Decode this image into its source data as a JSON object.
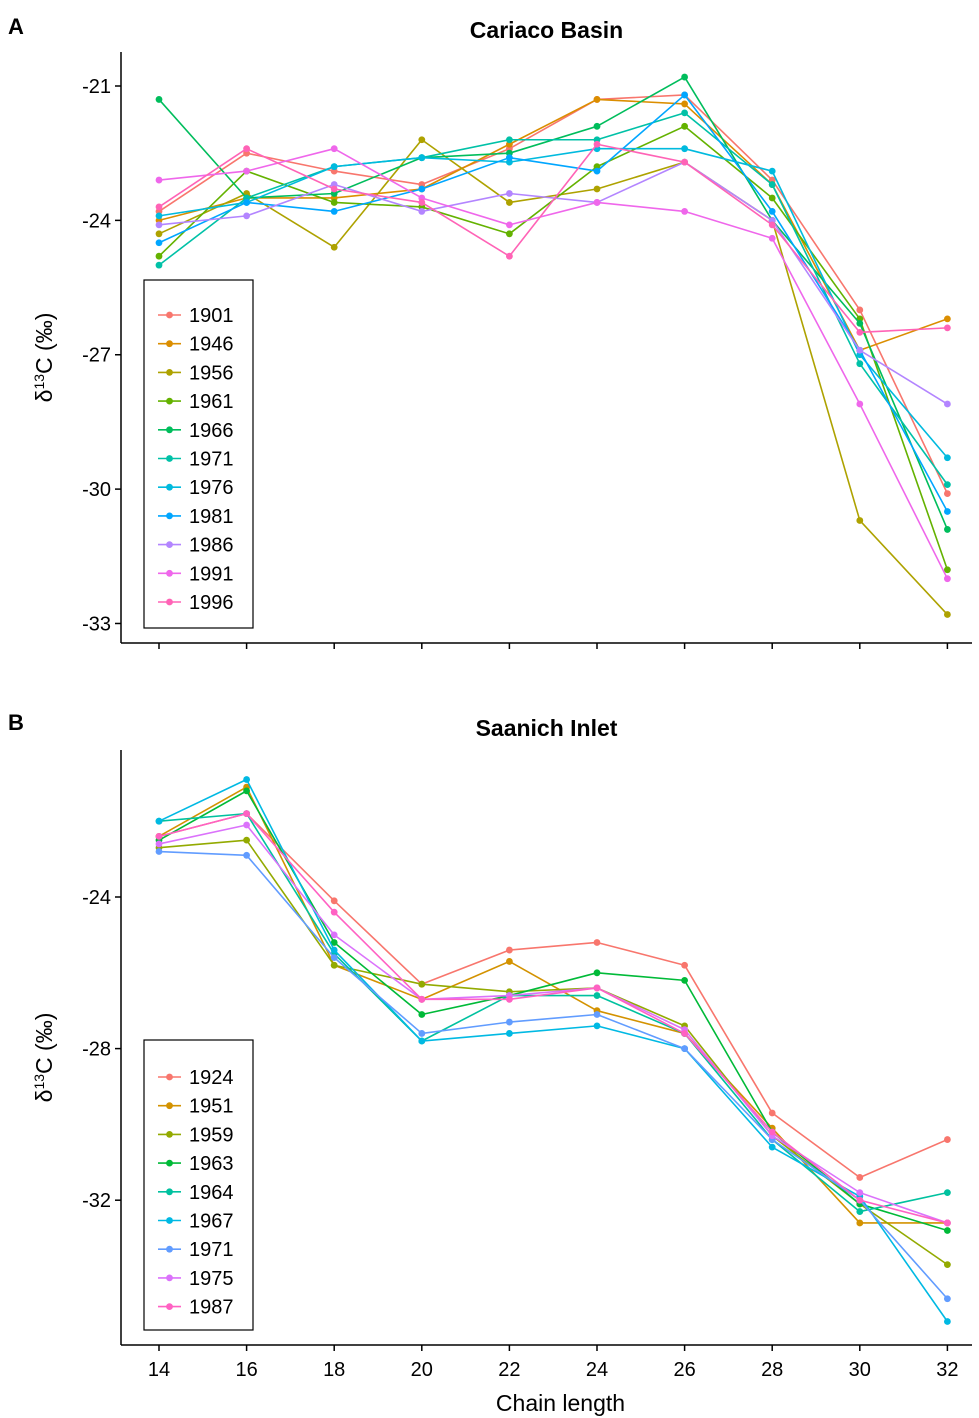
{
  "chart_data": [
    {
      "type": "line",
      "panel_label": "A",
      "title": "Cariaco Basin",
      "xlabel": "",
      "ylabel_prefix": "δ",
      "ylabel_sup": "13",
      "ylabel_suffix": "C (‰)",
      "x": [
        14,
        16,
        18,
        20,
        22,
        24,
        26,
        28,
        30,
        32
      ],
      "yticks": [
        -21,
        -24,
        -27,
        -30,
        -33
      ],
      "ylim": [
        -33.2,
        -20.2
      ],
      "legend_position": "bottom-left",
      "grid": false,
      "series": [
        {
          "name": "1901",
          "color": "#F8766D",
          "values": [
            -23.8,
            -22.5,
            -22.9,
            -23.2,
            -22.4,
            -21.3,
            -21.2,
            -23.1,
            -26.0,
            -30.1
          ]
        },
        {
          "name": "1946",
          "color": "#DB8E00",
          "values": [
            -24.0,
            -23.5,
            -23.5,
            -23.3,
            -22.3,
            -21.3,
            -21.4,
            -23.2,
            -26.9,
            -26.2
          ]
        },
        {
          "name": "1956",
          "color": "#AEA200",
          "values": [
            -24.3,
            -23.4,
            -24.6,
            -22.2,
            -23.6,
            -23.3,
            -22.7,
            -24.0,
            -30.7,
            -32.8
          ]
        },
        {
          "name": "1961",
          "color": "#64B200",
          "values": [
            -24.8,
            -22.9,
            -23.6,
            -23.7,
            -24.3,
            -22.8,
            -21.9,
            -23.5,
            -26.2,
            -31.8
          ]
        },
        {
          "name": "1966",
          "color": "#00BD5C",
          "values": [
            -21.3,
            -23.5,
            -23.4,
            -22.6,
            -22.5,
            -21.9,
            -20.8,
            -24.0,
            -26.3,
            -30.9
          ]
        },
        {
          "name": "1971",
          "color": "#00C1A7",
          "values": [
            -25.0,
            -23.5,
            -22.8,
            -22.6,
            -22.2,
            -22.2,
            -21.6,
            -23.2,
            -27.2,
            -29.9
          ]
        },
        {
          "name": "1976",
          "color": "#00BADE",
          "values": [
            -23.9,
            -23.6,
            -22.8,
            -22.6,
            -22.7,
            -22.4,
            -22.4,
            -22.9,
            -27.0,
            -29.3
          ]
        },
        {
          "name": "1981",
          "color": "#00A6FF",
          "values": [
            -24.5,
            -23.6,
            -23.8,
            -23.3,
            -22.6,
            -22.9,
            -21.2,
            -23.8,
            -26.9,
            -30.5
          ]
        },
        {
          "name": "1986",
          "color": "#B385FF",
          "values": [
            -24.1,
            -23.9,
            -23.2,
            -23.8,
            -23.4,
            -23.6,
            -22.7,
            -24.0,
            -26.9,
            -28.1
          ]
        },
        {
          "name": "1991",
          "color": "#EF67EB",
          "values": [
            -23.1,
            -22.9,
            -22.4,
            -23.5,
            -24.1,
            -23.6,
            -23.8,
            -24.4,
            -28.1,
            -32.0
          ]
        },
        {
          "name": "1996",
          "color": "#FF63B6",
          "values": [
            -23.7,
            -22.4,
            -23.3,
            -23.6,
            -24.8,
            -22.3,
            -22.7,
            -24.1,
            -26.5,
            -26.4
          ]
        }
      ]
    },
    {
      "type": "line",
      "panel_label": "B",
      "title": "Saanich Inlet",
      "xlabel": "Chain length",
      "ylabel_prefix": "δ",
      "ylabel_sup": "13",
      "ylabel_suffix": "C (‰)",
      "x": [
        14,
        16,
        18,
        20,
        22,
        24,
        26,
        28,
        30,
        32
      ],
      "xticks": [
        14,
        16,
        18,
        20,
        22,
        24,
        26,
        28,
        30,
        32
      ],
      "yticks": [
        -24,
        -28,
        -32
      ],
      "ylim": [
        -35.8,
        -20.7
      ],
      "legend_position": "bottom-left",
      "grid": false,
      "series": [
        {
          "name": "1924",
          "color": "#F8766D",
          "values": [
            -22.4,
            -21.8,
            -24.1,
            -26.3,
            -25.4,
            -25.2,
            -25.8,
            -29.7,
            -31.4,
            -30.4
          ]
        },
        {
          "name": "1951",
          "color": "#D39200",
          "values": [
            -22.4,
            -21.1,
            -25.8,
            -26.7,
            -25.7,
            -27.0,
            -27.6,
            -30.1,
            -32.6,
            -32.6
          ]
        },
        {
          "name": "1959",
          "color": "#93AA00",
          "values": [
            -22.7,
            -22.5,
            -25.8,
            -26.3,
            -26.5,
            -26.4,
            -27.4,
            -30.3,
            -32.1,
            -33.7
          ]
        },
        {
          "name": "1963",
          "color": "#00BA38",
          "values": [
            -22.5,
            -21.2,
            -25.2,
            -27.1,
            -26.6,
            -26.0,
            -26.2,
            -30.2,
            -32.1,
            -32.8
          ]
        },
        {
          "name": "1964",
          "color": "#00C19F",
          "values": [
            -22.0,
            -21.8,
            -25.5,
            -27.8,
            -26.6,
            -26.6,
            -27.6,
            -30.4,
            -32.3,
            -31.8
          ]
        },
        {
          "name": "1967",
          "color": "#00B9E3",
          "values": [
            -22.0,
            -20.9,
            -25.4,
            -27.8,
            -27.6,
            -27.4,
            -28.0,
            -30.6,
            -31.9,
            -35.2
          ]
        },
        {
          "name": "1971",
          "color": "#619CFF",
          "values": [
            -22.8,
            -22.9,
            -25.6,
            -27.6,
            -27.3,
            -27.1,
            -28.0,
            -30.4,
            -32.0,
            -34.6
          ]
        },
        {
          "name": "1975",
          "color": "#DB72FB",
          "values": [
            -22.6,
            -22.1,
            -25.0,
            -26.7,
            -26.6,
            -26.4,
            -27.5,
            -30.3,
            -31.8,
            -32.6
          ]
        },
        {
          "name": "1987",
          "color": "#FF61C3",
          "values": [
            -22.4,
            -21.8,
            -24.4,
            -26.7,
            -26.7,
            -26.4,
            -27.6,
            -30.2,
            -32.0,
            -32.6
          ]
        }
      ]
    }
  ]
}
